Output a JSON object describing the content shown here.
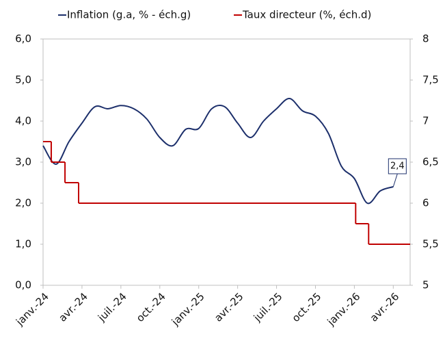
{
  "chart_data": {
    "type": "line",
    "series": [
      {
        "name": "Inflation (g.a, % - éch.g)",
        "color": "#1c2f6b",
        "axis": "y",
        "x": [
          0,
          1,
          2,
          3,
          4,
          5,
          6,
          7,
          8,
          9,
          10,
          11,
          12,
          13,
          14,
          15,
          16,
          17,
          18,
          19,
          20,
          21,
          22,
          23,
          24,
          25,
          26,
          27
        ],
        "values": [
          3.4,
          2.95,
          3.5,
          3.95,
          4.35,
          4.3,
          4.38,
          4.3,
          4.05,
          3.6,
          3.4,
          3.8,
          3.82,
          4.3,
          4.35,
          3.95,
          3.6,
          4.0,
          4.3,
          4.55,
          4.25,
          4.12,
          3.7,
          2.9,
          2.6,
          2.0,
          2.3,
          2.4
        ]
      },
      {
        "name": "Taux directeur (%, éch.d)",
        "color": "#c00000",
        "axis": "y2",
        "step": true,
        "x": [
          0,
          0.63,
          1.69,
          2.74,
          24.1,
          25.1
        ],
        "values": [
          6.75,
          6.5,
          6.25,
          6,
          5.75,
          5.5
        ]
      }
    ],
    "annotations": [
      {
        "label": "2,4",
        "x": 27,
        "y": 2.4
      }
    ],
    "xlim": [
      0,
      28.3
    ],
    "xticks": [
      {
        "value": 0,
        "label": "janv.-24"
      },
      {
        "value": 3,
        "label": "avr.-24"
      },
      {
        "value": 6,
        "label": "juil.-24"
      },
      {
        "value": 9,
        "label": "oct.-24"
      },
      {
        "value": 12,
        "label": "janv.-25"
      },
      {
        "value": 15,
        "label": "avr.-25"
      },
      {
        "value": 18,
        "label": "juil.-25"
      },
      {
        "value": 21,
        "label": "oct.-25"
      },
      {
        "value": 24,
        "label": "janv.-26"
      },
      {
        "value": 27,
        "label": "avr.-26"
      }
    ],
    "ylim": [
      0,
      6
    ],
    "yticks": [
      {
        "value": 0,
        "label": "0,0"
      },
      {
        "value": 1,
        "label": "1,0"
      },
      {
        "value": 2,
        "label": "2,0"
      },
      {
        "value": 3,
        "label": "3,0"
      },
      {
        "value": 4,
        "label": "4,0"
      },
      {
        "value": 5,
        "label": "5,0"
      },
      {
        "value": 6,
        "label": "6,0"
      }
    ],
    "y2lim": [
      5,
      8
    ],
    "y2ticks": [
      5,
      {
        "value": 5.5,
        "label": "5,5"
      },
      6,
      {
        "value": 6.5,
        "label": "6,5"
      },
      7,
      {
        "value": 7.5,
        "label": "7,5"
      },
      8
    ],
    "legend": "top"
  }
}
